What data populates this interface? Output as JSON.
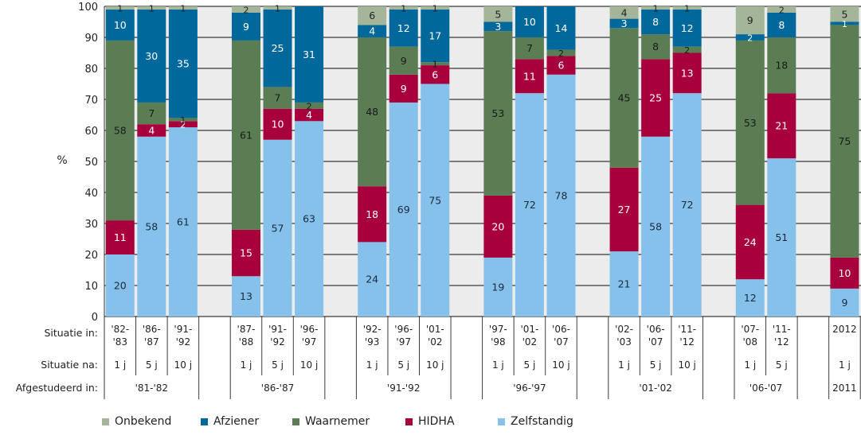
{
  "chart_data": {
    "type": "bar",
    "stacked": true,
    "ylabel": "%",
    "ylim": [
      0,
      100
    ],
    "yticks": [
      0,
      10,
      20,
      30,
      40,
      50,
      60,
      70,
      80,
      90,
      100
    ],
    "grid": true,
    "legend_position": "bottom",
    "row_labels": {
      "situatie_in": "Situatie in:",
      "situatie_na": "Situatie na:",
      "afgestudeerd_in": "Afgestudeerd in:"
    },
    "series_order": [
      "Zelfstandig",
      "HIDHA",
      "Waarnemer",
      "Afziener",
      "Onbekend"
    ],
    "legend": [
      "Onbekend",
      "Afziener",
      "Waarnemer",
      "HIDHA",
      "Zelfstandig"
    ],
    "colors": {
      "Onbekend": "#a4b59a",
      "Afziener": "#00689b",
      "Waarnemer": "#5a7d53",
      "HIDHA": "#a8003c",
      "Zelfstandig": "#86c1ec"
    },
    "label_colors": {
      "Onbekend": "#222222",
      "Afziener": "#ffffff",
      "Waarnemer": "#1a1a1a",
      "HIDHA": "#ffffff",
      "Zelfstandig": "#1a2a3a"
    },
    "groups": [
      {
        "afgestudeerd_in": "'81-'82",
        "bars": [
          {
            "situatie_in": [
              "'82-",
              "'83"
            ],
            "situatie_na": "1 j",
            "values": {
              "Zelfstandig": 20,
              "HIDHA": 11,
              "Waarnemer": 58,
              "Afziener": 10,
              "Onbekend": 1
            }
          },
          {
            "situatie_in": [
              "'86-",
              "'87"
            ],
            "situatie_na": "5 j",
            "values": {
              "Zelfstandig": 58,
              "HIDHA": 4,
              "Waarnemer": 7,
              "Afziener": 30,
              "Onbekend": 1
            }
          },
          {
            "situatie_in": [
              "'91-",
              "'92"
            ],
            "situatie_na": "10 j",
            "values": {
              "Zelfstandig": 61,
              "HIDHA": 2,
              "Waarnemer": 1,
              "Afziener": 35,
              "Onbekend": 1
            }
          }
        ]
      },
      {
        "afgestudeerd_in": "'86-'87",
        "bars": [
          {
            "situatie_in": [
              "'87-",
              "'88"
            ],
            "situatie_na": "1 j",
            "values": {
              "Zelfstandig": 13,
              "HIDHA": 15,
              "Waarnemer": 61,
              "Afziener": 9,
              "Onbekend": 2
            }
          },
          {
            "situatie_in": [
              "'91-",
              "'92"
            ],
            "situatie_na": "5 j",
            "values": {
              "Zelfstandig": 57,
              "HIDHA": 10,
              "Waarnemer": 7,
              "Afziener": 25,
              "Onbekend": 1
            }
          },
          {
            "situatie_in": [
              "'96-",
              "'97"
            ],
            "situatie_na": "10 j",
            "values": {
              "Zelfstandig": 63,
              "HIDHA": 4,
              "Waarnemer": 2,
              "Afziener": 31,
              "Onbekend": 0
            }
          }
        ]
      },
      {
        "afgestudeerd_in": "'91-'92",
        "bars": [
          {
            "situatie_in": [
              "'92-",
              "'93"
            ],
            "situatie_na": "1 j",
            "values": {
              "Zelfstandig": 24,
              "HIDHA": 18,
              "Waarnemer": 48,
              "Afziener": 4,
              "Onbekend": 6
            }
          },
          {
            "situatie_in": [
              "'96-",
              "'97"
            ],
            "situatie_na": "5 j",
            "values": {
              "Zelfstandig": 69,
              "HIDHA": 9,
              "Waarnemer": 9,
              "Afziener": 12,
              "Onbekend": 1
            }
          },
          {
            "situatie_in": [
              "'01-",
              "'02"
            ],
            "situatie_na": "10 j",
            "values": {
              "Zelfstandig": 75,
              "HIDHA": 6,
              "Waarnemer": 1,
              "Afziener": 17,
              "Onbekend": 1
            }
          }
        ]
      },
      {
        "afgestudeerd_in": "'96-'97",
        "bars": [
          {
            "situatie_in": [
              "'97-",
              "'98"
            ],
            "situatie_na": "1 j",
            "values": {
              "Zelfstandig": 19,
              "HIDHA": 20,
              "Waarnemer": 53,
              "Afziener": 3,
              "Onbekend": 5
            }
          },
          {
            "situatie_in": [
              "'01-",
              "'02"
            ],
            "situatie_na": "5 j",
            "values": {
              "Zelfstandig": 72,
              "HIDHA": 11,
              "Waarnemer": 7,
              "Afziener": 10,
              "Onbekend": 0
            }
          },
          {
            "situatie_in": [
              "'06-",
              "'07"
            ],
            "situatie_na": "10 j",
            "values": {
              "Zelfstandig": 78,
              "HIDHA": 6,
              "Waarnemer": 2,
              "Afziener": 14,
              "Onbekend": 0
            }
          }
        ]
      },
      {
        "afgestudeerd_in": "'01-'02",
        "bars": [
          {
            "situatie_in": [
              "'02-",
              "'03"
            ],
            "situatie_na": "1 j",
            "values": {
              "Zelfstandig": 21,
              "HIDHA": 27,
              "Waarnemer": 45,
              "Afziener": 3,
              "Onbekend": 4
            }
          },
          {
            "situatie_in": [
              "'06-",
              "'07"
            ],
            "situatie_na": "5 j",
            "values": {
              "Zelfstandig": 58,
              "HIDHA": 25,
              "Waarnemer": 8,
              "Afziener": 8,
              "Onbekend": 1
            }
          },
          {
            "situatie_in": [
              "'11-",
              "'12"
            ],
            "situatie_na": "10 j",
            "values": {
              "Zelfstandig": 72,
              "HIDHA": 13,
              "Waarnemer": 2,
              "Afziener": 12,
              "Onbekend": 1
            }
          }
        ]
      },
      {
        "afgestudeerd_in": "'06-'07",
        "bars": [
          {
            "situatie_in": [
              "'07-",
              "'08"
            ],
            "situatie_na": "1 j",
            "values": {
              "Zelfstandig": 12,
              "HIDHA": 24,
              "Waarnemer": 53,
              "Afziener": 2,
              "Onbekend": 9
            }
          },
          {
            "situatie_in": [
              "'11-",
              "'12"
            ],
            "situatie_na": "5 j",
            "values": {
              "Zelfstandig": 51,
              "HIDHA": 21,
              "Waarnemer": 18,
              "Afziener": 8,
              "Onbekend": 2
            }
          }
        ]
      },
      {
        "afgestudeerd_in": "2011",
        "bars": [
          {
            "situatie_in": [
              "2012"
            ],
            "situatie_na": "1 j",
            "values": {
              "Zelfstandig": 9,
              "HIDHA": 10,
              "Waarnemer": 75,
              "Afziener": 1,
              "Onbekend": 5
            }
          }
        ]
      }
    ]
  }
}
